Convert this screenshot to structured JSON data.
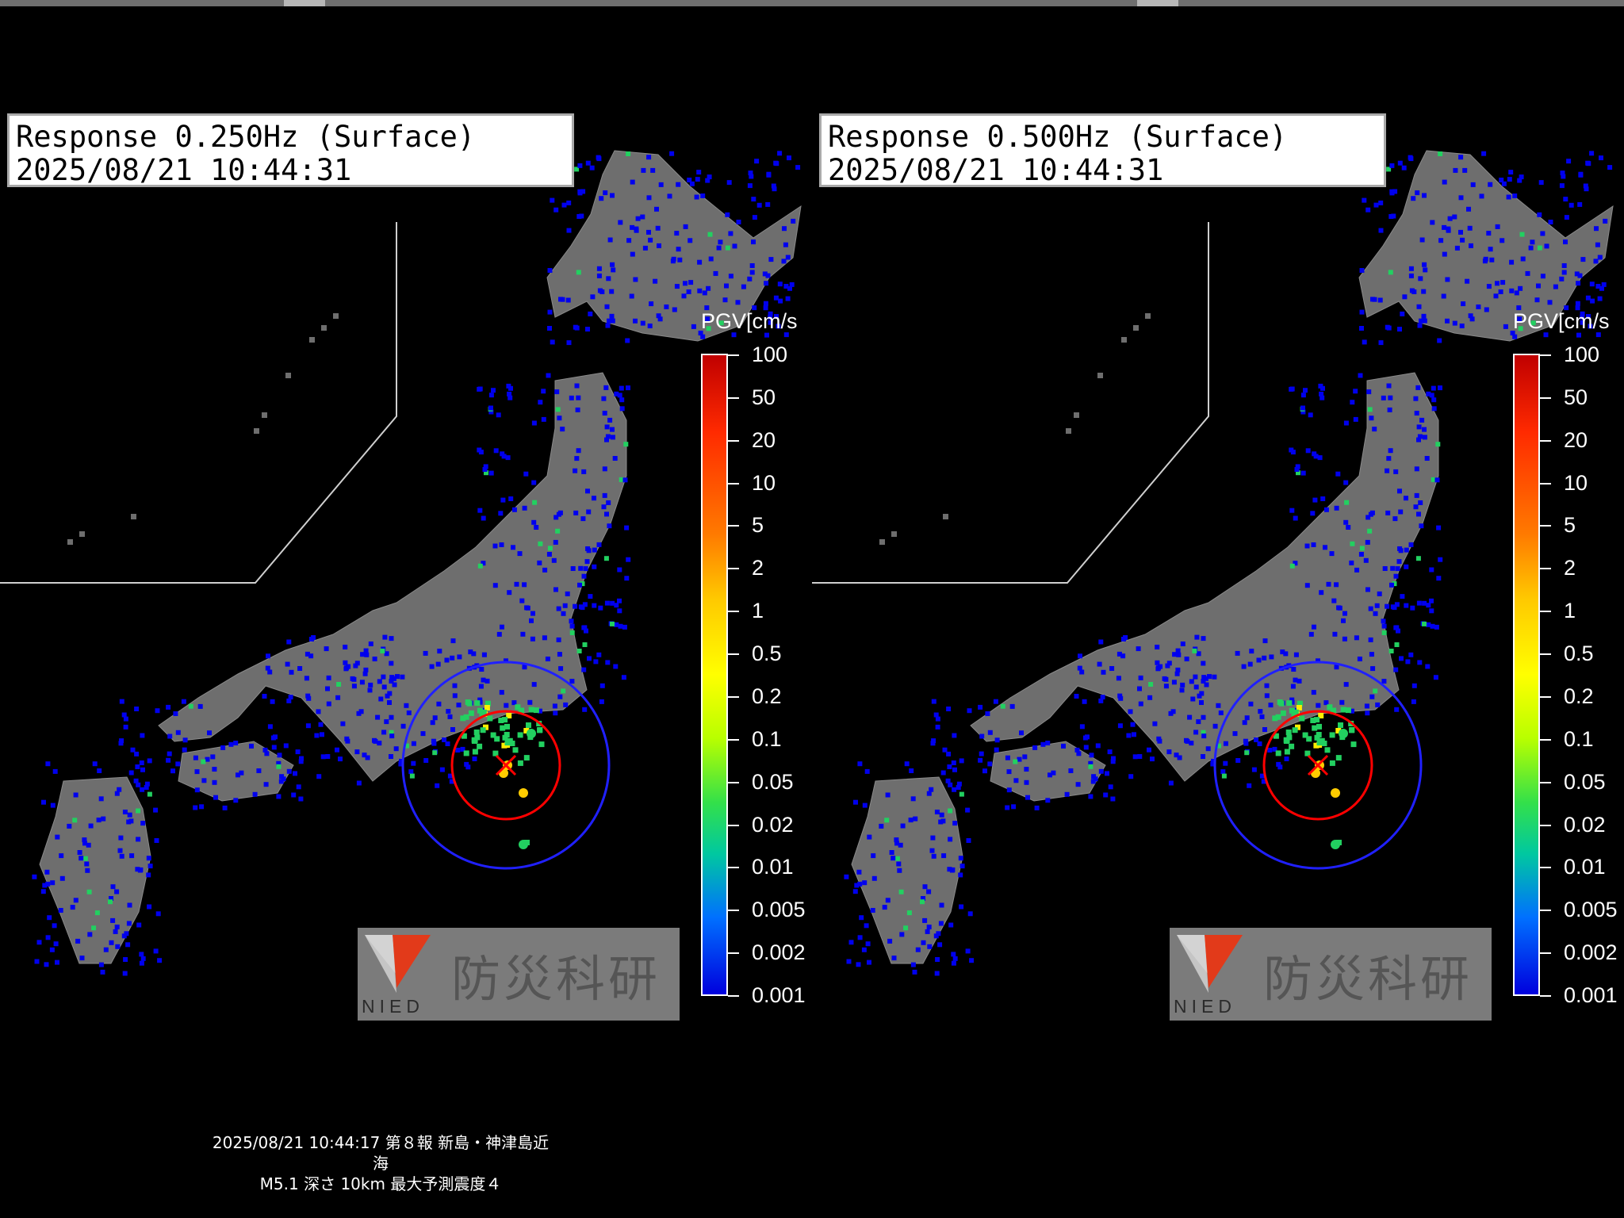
{
  "panels": [
    {
      "title_line1": "Response 0.250Hz (Surface)",
      "title_line2": "2025/08/21 10:44:31",
      "legend_title": "PGV[cm/s",
      "ticks": [
        "100",
        "50",
        "20",
        "10",
        "5",
        "2",
        "1",
        "0.5",
        "0.2",
        "0.1",
        "0.05",
        "0.02",
        "0.01",
        "0.005",
        "0.002",
        "0.001"
      ],
      "logo_text": "防災科研",
      "logo_sub": "NIED"
    },
    {
      "title_line1": "Response 0.500Hz (Surface)",
      "title_line2": "2025/08/21 10:44:31",
      "legend_title": "PGV[cm/s",
      "ticks": [
        "100",
        "50",
        "20",
        "10",
        "5",
        "2",
        "1",
        "0.5",
        "0.2",
        "0.1",
        "0.05",
        "0.02",
        "0.01",
        "0.005",
        "0.002",
        "0.001"
      ],
      "logo_text": "防災科研",
      "logo_sub": "NIED"
    }
  ],
  "caption": {
    "line1": "2025/08/21 10:44:17 第８報 新島・神津島近海",
    "line2": "M5.1 深さ 10km 最大予測震度４"
  },
  "colors": {
    "background": "#000000",
    "land": "#6e6e6e",
    "station_low": "#0000ee",
    "station_mid": "#22d060",
    "station_high": "#ffee00",
    "p_wave_circle": "#2020ff",
    "s_wave_circle": "#ff0000",
    "epicenter": "#ff0000"
  }
}
